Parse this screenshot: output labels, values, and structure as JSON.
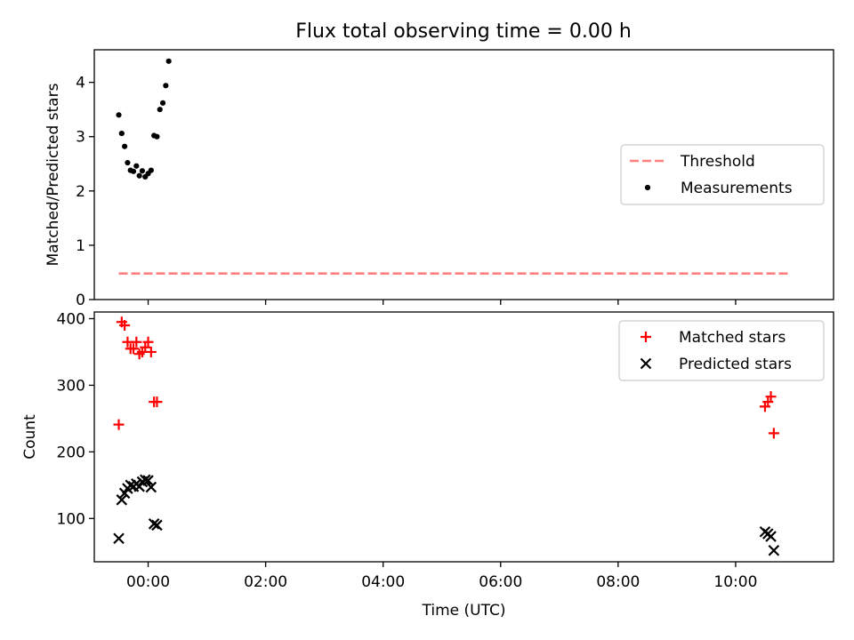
{
  "figure": {
    "title": "Flux total observing time = 0.00 h"
  },
  "colors": {
    "threshold": "#ff7f7f",
    "measurements": "#000000",
    "matched": "#ff0000",
    "predicted": "#000000"
  },
  "chart_data": [
    {
      "id": "ratio",
      "type": "scatter",
      "ylabel": "Matched/Predicted stars",
      "xlabel": "",
      "ylim": [
        0,
        4.6
      ],
      "yticks": [
        0,
        1,
        2,
        3,
        4
      ],
      "xlim": [
        "23:05",
        "11:40"
      ],
      "xticks": [
        "00:00",
        "02:00",
        "04:00",
        "06:00",
        "08:00",
        "10:00"
      ],
      "show_xtick_labels": false,
      "legend": {
        "position": "center-right",
        "entries": [
          "Threshold",
          "Measurements"
        ]
      },
      "series": [
        {
          "name": "Threshold",
          "kind": "dashed-line",
          "x": [
            "23:30",
            "10:55"
          ],
          "y": [
            0.48,
            0.48
          ]
        },
        {
          "name": "Measurements",
          "kind": "dot",
          "x": [
            "23:30",
            "23:33",
            "23:36",
            "23:39",
            "23:42",
            "23:45",
            "23:48",
            "23:51",
            "23:54",
            "23:57",
            "00:00",
            "00:03",
            "00:06",
            "00:09",
            "00:12",
            "00:15",
            "00:18",
            "00:21",
            "00:24",
            "10:30",
            "10:36",
            "10:42",
            "10:48",
            "10:54",
            "11:00"
          ],
          "y": [
            3.4,
            3.06,
            2.82,
            2.52,
            2.38,
            2.36,
            2.46,
            2.28,
            2.37,
            2.26,
            2.32,
            2.38,
            3.02,
            3.0,
            3.5,
            3.62,
            3.94,
            4.39,
            null,
            null,
            null,
            null,
            null,
            null,
            null
          ]
        }
      ]
    },
    {
      "id": "count",
      "type": "scatter",
      "ylabel": "Count",
      "xlabel": "Time (UTC)",
      "ylim": [
        35,
        410
      ],
      "yticks": [
        100,
        200,
        300,
        400
      ],
      "xlim": [
        "23:05",
        "11:40"
      ],
      "xticks": [
        "00:00",
        "02:00",
        "04:00",
        "06:00",
        "08:00",
        "10:00"
      ],
      "show_xtick_labels": true,
      "legend": {
        "position": "top-right",
        "entries": [
          "Matched stars",
          "Predicted stars"
        ]
      },
      "series": [
        {
          "name": "Matched stars",
          "kind": "plus",
          "x": [
            "23:30",
            "23:33",
            "23:36",
            "23:39",
            "23:42",
            "23:45",
            "23:48",
            "23:51",
            "23:54",
            "23:57",
            "00:00",
            "00:03",
            "00:06",
            "00:09",
            "10:30",
            "10:33",
            "10:36",
            "10:39",
            "10:42",
            "10:45",
            "10:48",
            "10:51"
          ],
          "y": [
            241,
            395,
            390,
            365,
            355,
            355,
            365,
            347,
            350,
            357,
            365,
            350,
            275,
            275,
            268,
            275,
            283,
            228,
            null,
            null,
            null,
            null
          ]
        },
        {
          "name": "Predicted stars",
          "kind": "x",
          "x": [
            "23:30",
            "23:33",
            "23:36",
            "23:39",
            "23:42",
            "23:45",
            "23:48",
            "23:51",
            "23:54",
            "23:57",
            "00:00",
            "00:03",
            "00:06",
            "00:09",
            "10:30",
            "10:33",
            "10:36",
            "10:39",
            "10:42",
            "10:45",
            "10:48",
            "10:51"
          ],
          "y": [
            70,
            128,
            138,
            145,
            150,
            148,
            152,
            148,
            155,
            158,
            157,
            147,
            92,
            90,
            80,
            77,
            73,
            52,
            null,
            null,
            null,
            null
          ]
        }
      ]
    }
  ]
}
